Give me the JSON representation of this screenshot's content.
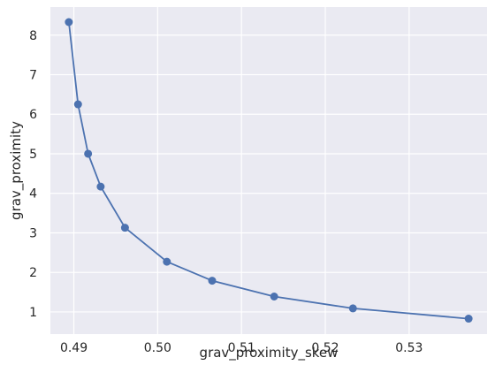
{
  "chart_data": {
    "type": "line",
    "markers": true,
    "title": "",
    "xlabel": "grav_proximity_skew",
    "ylabel": "grav_proximity",
    "xlim": [
      0.4872,
      0.5393
    ],
    "ylim": [
      0.44,
      8.71
    ],
    "xticks": [
      0.49,
      0.5,
      0.51,
      0.52,
      0.53
    ],
    "xtick_labels": [
      "0.49",
      "0.50",
      "0.51",
      "0.52",
      "0.53"
    ],
    "yticks": [
      1,
      2,
      3,
      4,
      5,
      6,
      7,
      8
    ],
    "ytick_labels": [
      "1",
      "2",
      "3",
      "4",
      "5",
      "6",
      "7",
      "8"
    ],
    "grid": true,
    "colors": {
      "background": "#eaeaf2",
      "grid": "#ffffff",
      "series": "#4c72b0"
    },
    "series": [
      {
        "x": [
          0.4894,
          0.4905,
          0.4917,
          0.4932,
          0.4961,
          0.5011,
          0.5065,
          0.5139,
          0.5233,
          0.5371
        ],
        "y": [
          8.33,
          6.25,
          5.0,
          4.17,
          3.13,
          2.27,
          1.79,
          1.39,
          1.09,
          0.83
        ]
      }
    ]
  }
}
